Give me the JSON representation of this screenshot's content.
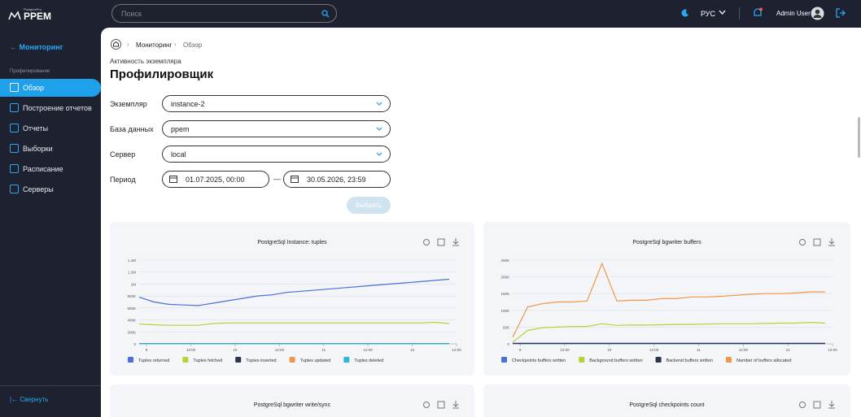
{
  "app": {
    "logo_small": "PostgresPro",
    "logo": "PPEM",
    "search_placeholder": "Поиск",
    "language": "РУС",
    "user": "Admin User"
  },
  "sidebar": {
    "back": "Мониторинг",
    "section": "Профилирование",
    "items": [
      "Обзор",
      "Построение отчетов",
      "Отчеты",
      "Выборки",
      "Расписание",
      "Серверы"
    ],
    "collapse": "Свернуть"
  },
  "breadcrumb": [
    "Мониторинг",
    "Обзор"
  ],
  "header": {
    "subtitle": "Активность экземпляра",
    "title": "Профилировщик"
  },
  "form": {
    "fields": [
      {
        "label": "Экземпляр",
        "value": "instance-2"
      },
      {
        "label": "База данных",
        "value": "ppem"
      },
      {
        "label": "Сервер",
        "value": "local"
      }
    ],
    "period": {
      "label": "Период",
      "from": "01.07.2025, 00:00",
      "separator": "—",
      "to": "30.05.2026, 23:59"
    },
    "button": "Выбрать"
  },
  "charts": [
    {
      "type": "line",
      "title": "PostgreSql Instance: tuples",
      "x": [
        0,
        4,
        8,
        12,
        16,
        20,
        24,
        28,
        32,
        36,
        40,
        44,
        48,
        52,
        56,
        60,
        64,
        68,
        72,
        76,
        80,
        84
      ],
      "xlim": [
        0,
        86
      ],
      "xticks": [
        {
          "value": 2,
          "label": "9"
        },
        {
          "value": 14,
          "label": "12:00"
        },
        {
          "value": 26,
          "label": "10"
        },
        {
          "value": 38,
          "label": "12:00"
        },
        {
          "value": 50,
          "label": "11"
        },
        {
          "value": 62,
          "label": "12:00"
        },
        {
          "value": 74,
          "label": "12"
        },
        {
          "value": 86,
          "label": "12:00"
        }
      ],
      "ylim": [
        0,
        1400000
      ],
      "yticks": [
        {
          "value": 0,
          "label": "0"
        },
        {
          "value": 200000,
          "label": "200K"
        },
        {
          "value": 400000,
          "label": "400K"
        },
        {
          "value": 600000,
          "label": "600K"
        },
        {
          "value": 800000,
          "label": "800K"
        },
        {
          "value": 1000000,
          "label": "1M"
        },
        {
          "value": 1200000,
          "label": "1.2M"
        },
        {
          "value": 1400000,
          "label": "1.4M"
        }
      ],
      "series": [
        {
          "name": "Tuples returned",
          "color": "#4a6fd6",
          "values": [
            780000,
            700000,
            660000,
            650000,
            640000,
            680000,
            720000,
            760000,
            800000,
            820000,
            860000,
            880000,
            900000,
            920000,
            940000,
            960000,
            980000,
            1000000,
            1020000,
            1040000,
            1060000,
            1080000
          ]
        },
        {
          "name": "Tuples fetched",
          "color": "#b5d334",
          "values": [
            330000,
            320000,
            310000,
            310000,
            310000,
            340000,
            350000,
            350000,
            350000,
            350000,
            350000,
            350000,
            350000,
            350000,
            350000,
            350000,
            350000,
            350000,
            350000,
            350000,
            360000,
            340000
          ]
        },
        {
          "name": "Tuples inserted",
          "color": "#2c3454",
          "values": [
            6000,
            5000,
            5000,
            5000,
            5000,
            5000,
            5000,
            5000,
            5000,
            5000,
            5000,
            5000,
            5000,
            5000,
            5000,
            5000,
            5000,
            5000,
            5000,
            5000,
            5000,
            5000
          ]
        },
        {
          "name": "Tuples updated",
          "color": "#f0964a",
          "values": [
            2000,
            2000,
            2000,
            2000,
            2000,
            2000,
            2000,
            2000,
            2000,
            2000,
            2000,
            2000,
            2000,
            2000,
            2000,
            2000,
            2000,
            2000,
            2000,
            2000,
            2000,
            2000
          ]
        },
        {
          "name": "Tuples deleted",
          "color": "#2eb5d8",
          "values": [
            1000,
            1000,
            1000,
            1000,
            1000,
            1000,
            1000,
            1000,
            1000,
            1000,
            1000,
            1000,
            1000,
            1000,
            1000,
            1000,
            1000,
            1000,
            1000,
            1000,
            1000,
            1000
          ]
        }
      ]
    },
    {
      "type": "line",
      "title": "PostgreSql bgwriter buffers",
      "x": [
        0,
        4,
        8,
        12,
        16,
        20,
        24,
        28,
        32,
        36,
        40,
        44,
        48,
        52,
        56,
        60,
        64,
        68,
        72,
        76,
        80,
        84
      ],
      "xlim": [
        0,
        86
      ],
      "xticks": [
        {
          "value": 2,
          "label": "9"
        },
        {
          "value": 14,
          "label": "12:00"
        },
        {
          "value": 26,
          "label": "10"
        },
        {
          "value": 38,
          "label": "12:00"
        },
        {
          "value": 50,
          "label": "11"
        },
        {
          "value": 62,
          "label": "12:00"
        },
        {
          "value": 74,
          "label": "12"
        },
        {
          "value": 86,
          "label": "12:00"
        }
      ],
      "ylim": [
        0,
        250000
      ],
      "yticks": [
        {
          "value": 0,
          "label": "0"
        },
        {
          "value": 50000,
          "label": "50K"
        },
        {
          "value": 100000,
          "label": "100K"
        },
        {
          "value": 150000,
          "label": "150K"
        },
        {
          "value": 200000,
          "label": "200K"
        },
        {
          "value": 250000,
          "label": "250K"
        }
      ],
      "series": [
        {
          "name": "Checkpoints buffers written",
          "color": "#4a6fd6",
          "values": [
            2000,
            2000,
            2000,
            2000,
            2000,
            2000,
            2000,
            2000,
            2000,
            2000,
            2000,
            2000,
            2000,
            2000,
            2000,
            2000,
            2000,
            2000,
            2000,
            2000,
            2000,
            2000
          ]
        },
        {
          "name": "Background buffers written",
          "color": "#b5d334",
          "values": [
            5000,
            40000,
            48000,
            50000,
            52000,
            52000,
            60000,
            55000,
            56000,
            56000,
            57000,
            58000,
            58000,
            59000,
            60000,
            60000,
            60000,
            61000,
            62000,
            62000,
            64000,
            62000
          ]
        },
        {
          "name": "Backend buffers written",
          "color": "#2c3454",
          "values": [
            1000,
            1000,
            1000,
            1000,
            1000,
            1000,
            1000,
            1000,
            1000,
            1000,
            1000,
            1000,
            1000,
            1000,
            1000,
            1000,
            1000,
            1000,
            1000,
            1000,
            1000,
            1000
          ]
        },
        {
          "name": "Number of buffers allocated",
          "color": "#f0964a",
          "values": [
            20000,
            110000,
            120000,
            125000,
            125000,
            128000,
            240000,
            128000,
            130000,
            130000,
            135000,
            135000,
            140000,
            140000,
            142000,
            145000,
            148000,
            150000,
            150000,
            152000,
            155000,
            155000
          ]
        }
      ]
    },
    {
      "title": "PostgreSql bgwriter write/sync"
    },
    {
      "title": "PostgreSql checkpoints count"
    }
  ]
}
